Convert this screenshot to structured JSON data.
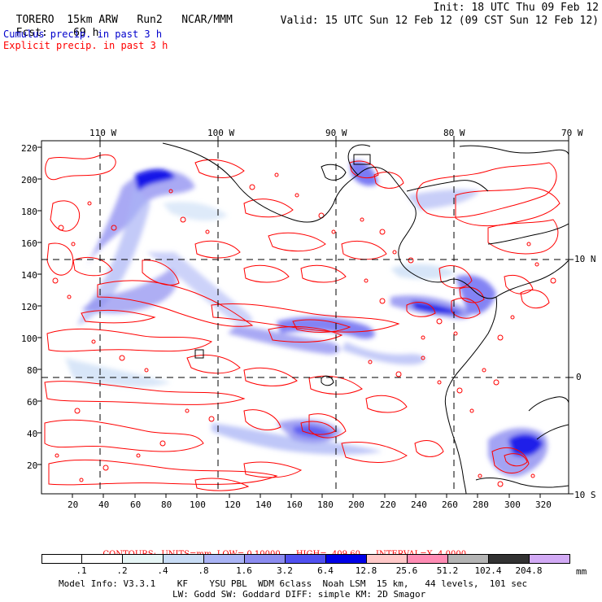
{
  "header": {
    "model": "TORERO",
    "resolution": "15km ARW",
    "run": "Run2",
    "org": "NCAR/MMM",
    "init": "Init: 18 UTC Thu 09 Feb 12",
    "fcst_label": "Fcst:",
    "fcst_value": "69 h",
    "valid": "Valid: 15 UTC Sun 12 Feb 12 (09 CST Sun 12 Feb 12)",
    "legend_cumulus": "Cumulus precip. in past 3 h",
    "legend_explicit": "Explicit precip. in past 3 h"
  },
  "colors": {
    "cumulus_title": "#0000cc",
    "explicit_title": "#ff0000",
    "contour": "#ff0000",
    "coast": "#000000"
  },
  "map": {
    "lon_labels": [
      "110 W",
      "100 W",
      "90 W",
      "80 W",
      "70 W"
    ],
    "lat_labels": [
      "10 N",
      "0",
      "10 S"
    ],
    "x_ticks": [
      "20",
      "40",
      "60",
      "80",
      "100",
      "120",
      "140",
      "160",
      "180",
      "200",
      "220",
      "240",
      "260",
      "280",
      "300",
      "320"
    ],
    "y_ticks": [
      "220",
      "200",
      "180",
      "160",
      "140",
      "120",
      "100",
      "80",
      "60",
      "40",
      "20"
    ]
  },
  "contour_info": {
    "units": "CONTOURS:  UNITS=mm  LOW= 0.10000",
    "high": "HIGH=  409.60",
    "interval": "INTERVAL=X  4.0000"
  },
  "colorbar": {
    "labels": [
      ".1",
      ".2",
      ".4",
      ".8",
      "1.6",
      "3.2",
      "6.4",
      "12.8",
      "25.6",
      "51.2",
      "102.4",
      "204.8"
    ],
    "colors": [
      "#ffffff",
      "#ffffff",
      "#e6f5f5",
      "#c8dcf5",
      "#aab4f5",
      "#8c8cf0",
      "#5050f0",
      "#0000e6",
      "#ffc8c8",
      "#ff8cb4",
      "#b4b4b4",
      "#323232",
      "#d2aaf5"
    ],
    "units": "mm"
  },
  "footer": {
    "line1": "Model Info: V3.3.1    KF    YSU PBL  WDM 6class  Noah LSM  15 km,   44 levels,  101 sec",
    "line2": "LW: Godd SW: Goddard DIFF: simple KM: 2D Smagor"
  }
}
